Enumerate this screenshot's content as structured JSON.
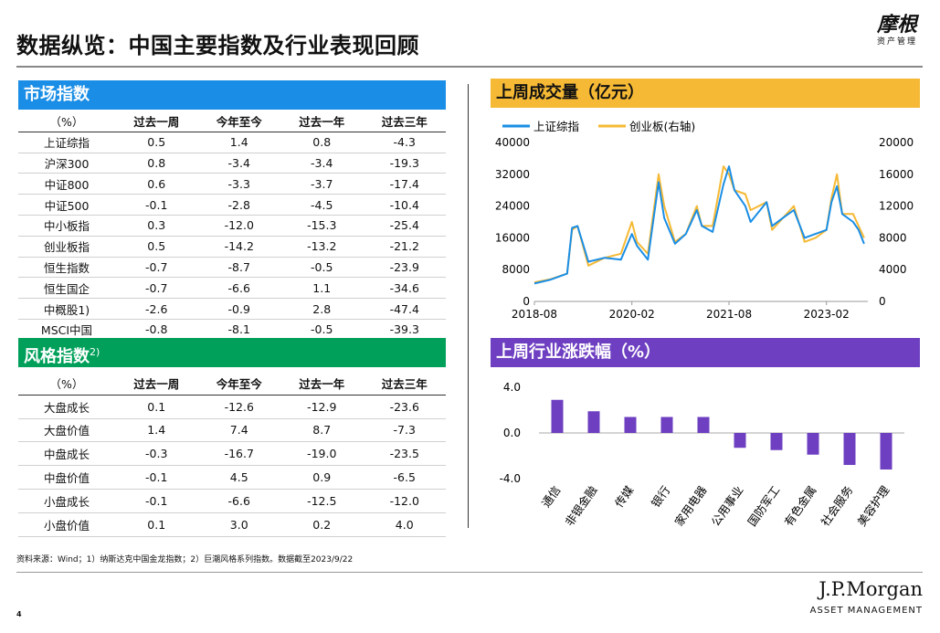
{
  "title": "数据纵览：中国主要指数及行业表现回顾",
  "logo": {
    "main": "摩根",
    "sub": "资产管理"
  },
  "market_index": {
    "title": "市场指数",
    "headers": [
      "（%）",
      "过去一周",
      "今年至今",
      "过去一年",
      "过去三年"
    ],
    "rows": [
      [
        "上证综指",
        "0.5",
        "1.4",
        "0.8",
        "-4.3"
      ],
      [
        "沪深300",
        "0.8",
        "-3.4",
        "-3.4",
        "-19.3"
      ],
      [
        "中证800",
        "0.6",
        "-3.3",
        "-3.7",
        "-17.4"
      ],
      [
        "中证500",
        "-0.1",
        "-2.8",
        "-4.5",
        "-10.4"
      ],
      [
        "中小板指",
        "0.3",
        "-12.0",
        "-15.3",
        "-25.4"
      ],
      [
        "创业板指",
        "0.5",
        "-14.2",
        "-13.2",
        "-21.2"
      ],
      [
        "恒生指数",
        "-0.7",
        "-8.7",
        "-0.5",
        "-23.9"
      ],
      [
        "恒生国企",
        "-0.7",
        "-6.6",
        "1.1",
        "-34.6"
      ],
      [
        "中概股1)",
        "-2.6",
        "-0.9",
        "2.8",
        "-47.4"
      ],
      [
        "MSCI中国",
        "-0.8",
        "-8.1",
        "-0.5",
        "-39.3"
      ]
    ]
  },
  "style_index": {
    "title": "风格指数",
    "title_sup": "2)",
    "headers": [
      "（%）",
      "过去一周",
      "今年至今",
      "过去一年",
      "过去三年"
    ],
    "rows": [
      [
        "大盘成长",
        "0.1",
        "-12.6",
        "-12.9",
        "-23.6"
      ],
      [
        "大盘价值",
        "1.4",
        "7.4",
        "8.7",
        "-7.3"
      ],
      [
        "中盘成长",
        "-0.3",
        "-16.7",
        "-19.0",
        "-23.5"
      ],
      [
        "中盘价值",
        "-0.1",
        "4.5",
        "0.9",
        "-6.5"
      ],
      [
        "小盘成长",
        "-0.1",
        "-6.6",
        "-12.5",
        "-12.0"
      ],
      [
        "小盘价值",
        "0.1",
        "3.0",
        "0.2",
        "4.0"
      ]
    ]
  },
  "volume_panel_title": "上周成交量（亿元）",
  "sector_panel_title": "上周行业涨跌幅（%）",
  "colors": {
    "market_header": "#1a8ee6",
    "style_header": "#00a05a",
    "volume_header": "#f5b935",
    "sector_header": "#6e3fc1",
    "line_sh": "#1a8ee6",
    "line_cyb": "#f5b935",
    "bar": "#6e3fc1"
  },
  "chart_data": [
    {
      "type": "line",
      "title": "上周成交量（亿元）",
      "series": [
        {
          "name": "上证综指",
          "axis": "left",
          "x": [
            "2018-08",
            "2018-11",
            "2019-02",
            "2019-03",
            "2019-04",
            "2019-06",
            "2019-09",
            "2019-12",
            "2020-02",
            "2020-03",
            "2020-05",
            "2020-07",
            "2020-08",
            "2020-10",
            "2020-12",
            "2021-02",
            "2021-03",
            "2021-05",
            "2021-07",
            "2021-08",
            "2021-09",
            "2021-11",
            "2021-12",
            "2022-03",
            "2022-04",
            "2022-06",
            "2022-08",
            "2022-10",
            "2022-12",
            "2023-02",
            "2023-03",
            "2023-04",
            "2023-05",
            "2023-07",
            "2023-08",
            "2023-09"
          ],
          "values": [
            4500,
            5500,
            7000,
            18500,
            19000,
            10000,
            11000,
            10500,
            17000,
            14000,
            10500,
            30000,
            21000,
            14500,
            17000,
            23000,
            19000,
            17500,
            29500,
            34000,
            28000,
            24000,
            20000,
            25000,
            19000,
            21000,
            23000,
            16000,
            17000,
            18000,
            25000,
            29000,
            22000,
            20000,
            18000,
            14500
          ]
        },
        {
          "name": "创业板(右轴)",
          "axis": "right",
          "x": [
            "2018-08",
            "2018-11",
            "2019-02",
            "2019-03",
            "2019-04",
            "2019-06",
            "2019-09",
            "2019-12",
            "2020-02",
            "2020-03",
            "2020-05",
            "2020-07",
            "2020-08",
            "2020-10",
            "2020-12",
            "2021-02",
            "2021-03",
            "2021-05",
            "2021-07",
            "2021-08",
            "2021-09",
            "2021-11",
            "2021-12",
            "2022-03",
            "2022-04",
            "2022-06",
            "2022-08",
            "2022-10",
            "2022-12",
            "2023-02",
            "2023-03",
            "2023-04",
            "2023-05",
            "2023-07",
            "2023-08",
            "2023-09"
          ],
          "values": [
            2400,
            2800,
            3500,
            9000,
            9500,
            4500,
            5500,
            6000,
            10000,
            7500,
            6000,
            16000,
            12000,
            7500,
            8500,
            12000,
            9500,
            9500,
            17000,
            16000,
            14000,
            13500,
            11500,
            12500,
            9000,
            10500,
            12000,
            7500,
            8000,
            9000,
            13000,
            16000,
            11000,
            11000,
            9500,
            8000
          ]
        }
      ],
      "left_axis": {
        "ticks": [
          0,
          8000,
          16000,
          24000,
          32000,
          40000
        ],
        "range": [
          0,
          40000
        ]
      },
      "right_axis": {
        "ticks": [
          0,
          4000,
          8000,
          12000,
          16000,
          20000
        ],
        "range": [
          0,
          20000
        ]
      },
      "x_ticks": [
        "2018-08",
        "2020-02",
        "2021-08",
        "2023-02"
      ],
      "legend": "top-left"
    },
    {
      "type": "bar",
      "title": "上周行业涨跌幅（%）",
      "categories": [
        "通信",
        "非银金融",
        "传媒",
        "银行",
        "家用电器",
        "公用事业",
        "国防军工",
        "有色金属",
        "社会服务",
        "美容护理"
      ],
      "values": [
        2.9,
        1.9,
        1.4,
        1.4,
        1.4,
        -1.3,
        -1.5,
        -1.9,
        -2.8,
        -3.2
      ],
      "y_ticks": [
        "4.0",
        "0.0",
        "-4.0"
      ],
      "ylim": [
        -4.0,
        4.0
      ]
    }
  ],
  "source": "资料来源：Wind；1）纳斯达克中国金龙指数；2）巨潮风格系列指数。数据截至2023/9/22",
  "page_number": "4",
  "footer_logo": {
    "main": "J.P.Morgan",
    "sub": "ASSET MANAGEMENT"
  }
}
